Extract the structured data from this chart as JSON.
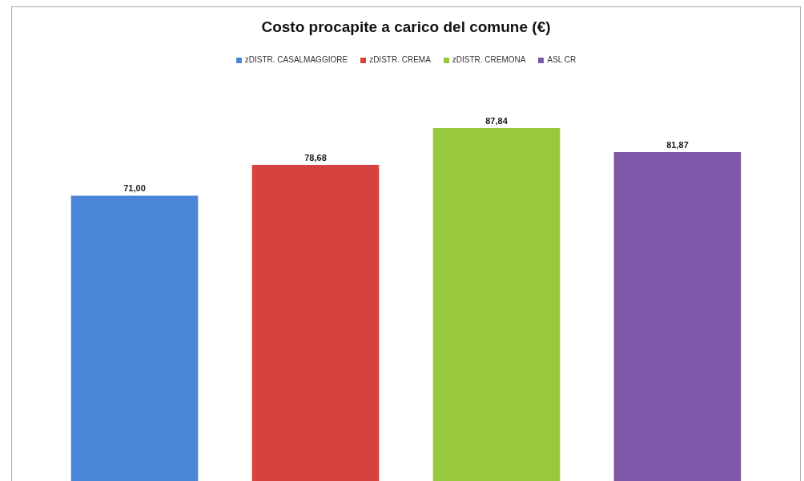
{
  "chart_data": {
    "type": "bar",
    "title": "Costo procapite a carico del comune (€)",
    "categories": [
      null,
      null,
      null,
      null
    ],
    "values": [
      71.0,
      78.68,
      87.84,
      81.87
    ],
    "value_labels": [
      "71,00",
      "78,68",
      "87,84",
      "81,87"
    ],
    "colors": [
      "#4a86d8",
      "#d8423c",
      "#98c83c",
      "#7e57a8"
    ],
    "annotations": [
      "zDISTR. CASALMAGGIORE",
      "zDISTR. CREMA",
      "zDISTR. CREMONA",
      "ASL CR"
    ]
  }
}
